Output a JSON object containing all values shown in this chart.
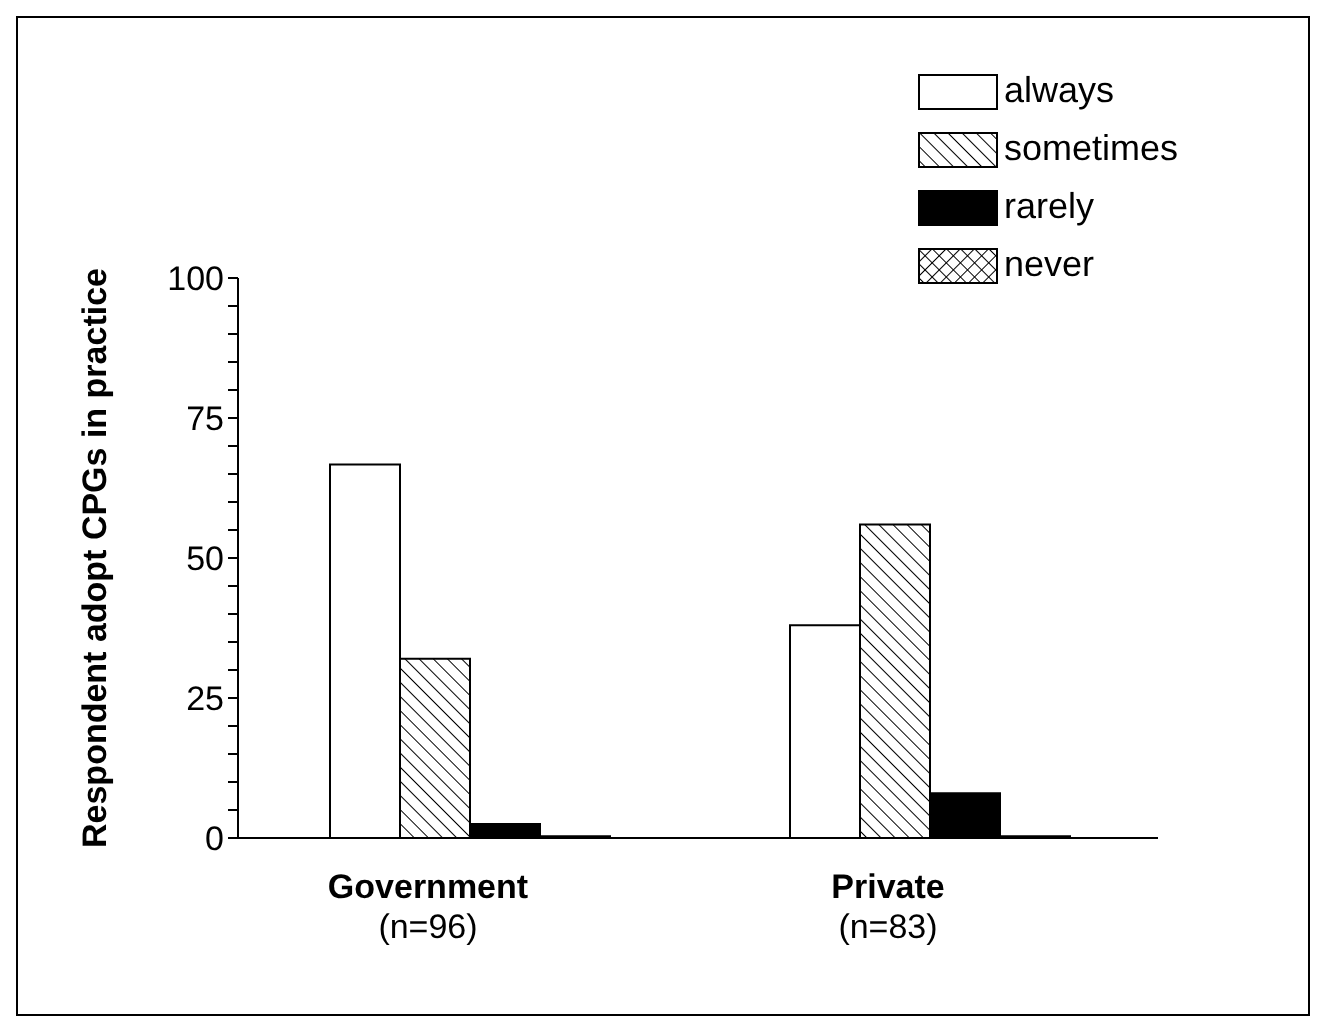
{
  "chart_data": {
    "type": "bar",
    "ylabel": "Respondent adopt CPGs in practice",
    "categories": [
      "Government\n(n=96)",
      "Private\n(n=83)"
    ],
    "series": [
      {
        "name": "always",
        "color": "#ffffff",
        "values": [
          66.7,
          38
        ]
      },
      {
        "name": "sometimes",
        "color": "#000000",
        "values": [
          32,
          56
        ]
      },
      {
        "name": "rarely",
        "color": "#000000",
        "values": [
          2.5,
          8
        ]
      },
      {
        "name": "never",
        "color": "#000000",
        "values": [
          0.3,
          0.3
        ]
      }
    ],
    "ylim": [
      0,
      100
    ],
    "yticks": [
      0,
      {
        "value": 5,
        "label": null
      },
      {
        "value": 10,
        "label": null
      },
      {
        "value": 15,
        "label": null
      },
      {
        "value": 20,
        "label": null
      },
      25,
      {
        "value": 30,
        "label": null
      },
      {
        "value": 35,
        "label": null
      },
      {
        "value": 40,
        "label": null
      },
      {
        "value": 45,
        "label": null
      },
      50,
      {
        "value": 55,
        "label": null
      },
      {
        "value": 60,
        "label": null
      },
      {
        "value": 65,
        "label": null
      },
      {
        "value": 70,
        "label": null
      },
      75,
      {
        "value": 80,
        "label": null
      },
      {
        "value": 85,
        "label": null
      },
      {
        "value": 90,
        "label": null
      },
      {
        "value": 95,
        "label": null
      },
      100
    ],
    "legend": "top right"
  }
}
